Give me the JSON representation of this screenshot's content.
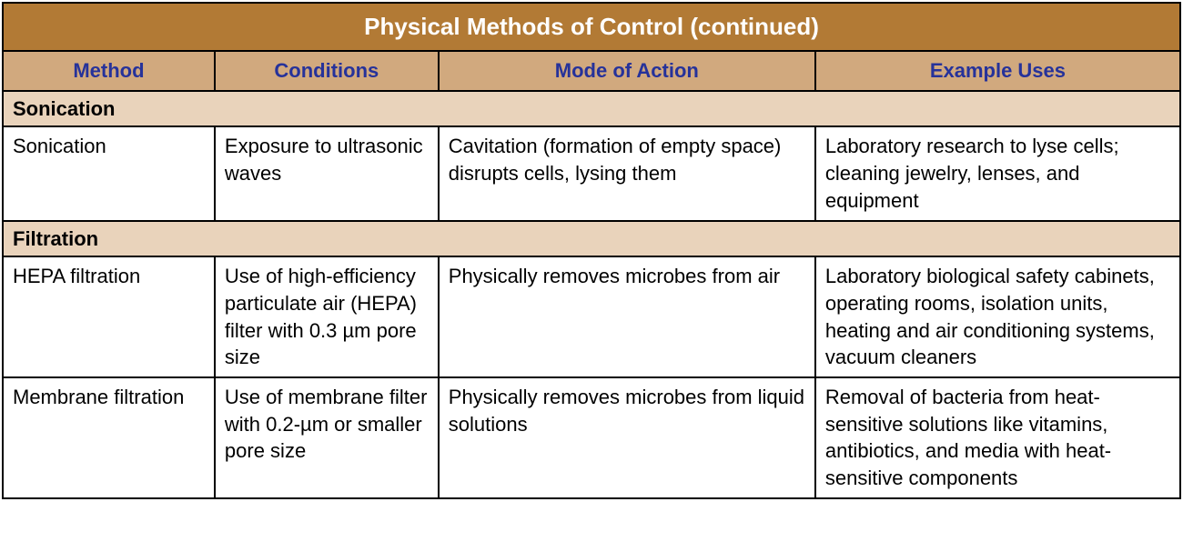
{
  "table": {
    "title": "Physical Methods of Control (continued)",
    "colors": {
      "title_bg": "#b27a35",
      "title_text": "#ffffff",
      "header_bg": "#d1a97e",
      "header_text": "#26329a",
      "section_bg": "#e9d3bb",
      "cell_bg": "#ffffff",
      "border": "#000000"
    },
    "columns": {
      "widths_pct": [
        18,
        19,
        32,
        31
      ],
      "labels": [
        "Method",
        "Conditions",
        "Mode of Action",
        "Example Uses"
      ]
    },
    "sections": [
      {
        "label": "Sonication",
        "rows": [
          {
            "method": "Sonication",
            "conditions": "Exposure to ultrasonic waves",
            "mode": "Cavitation (formation of empty space) disrupts cells, lysing them",
            "uses": "Laboratory research to lyse cells; cleaning jewelry, lenses, and equipment"
          }
        ]
      },
      {
        "label": "Filtration",
        "rows": [
          {
            "method": "HEPA filtration",
            "conditions": "Use of high-efficiency particulate air (HEPA) filter with 0.3 µm pore size",
            "mode": "Physically removes microbes from air",
            "uses": "Laboratory biological safety cabinets, operating rooms, isolation units, heating and air conditioning systems, vacuum cleaners"
          },
          {
            "method": "Membrane filtration",
            "conditions": "Use of membrane filter with 0.2-µm or smaller pore size",
            "mode": "Physically removes microbes from liquid solutions",
            "uses": "Removal of bacteria from heat-sensitive solutions like vitamins, antibiotics, and media with heat-sensitive components"
          }
        ]
      }
    ]
  }
}
